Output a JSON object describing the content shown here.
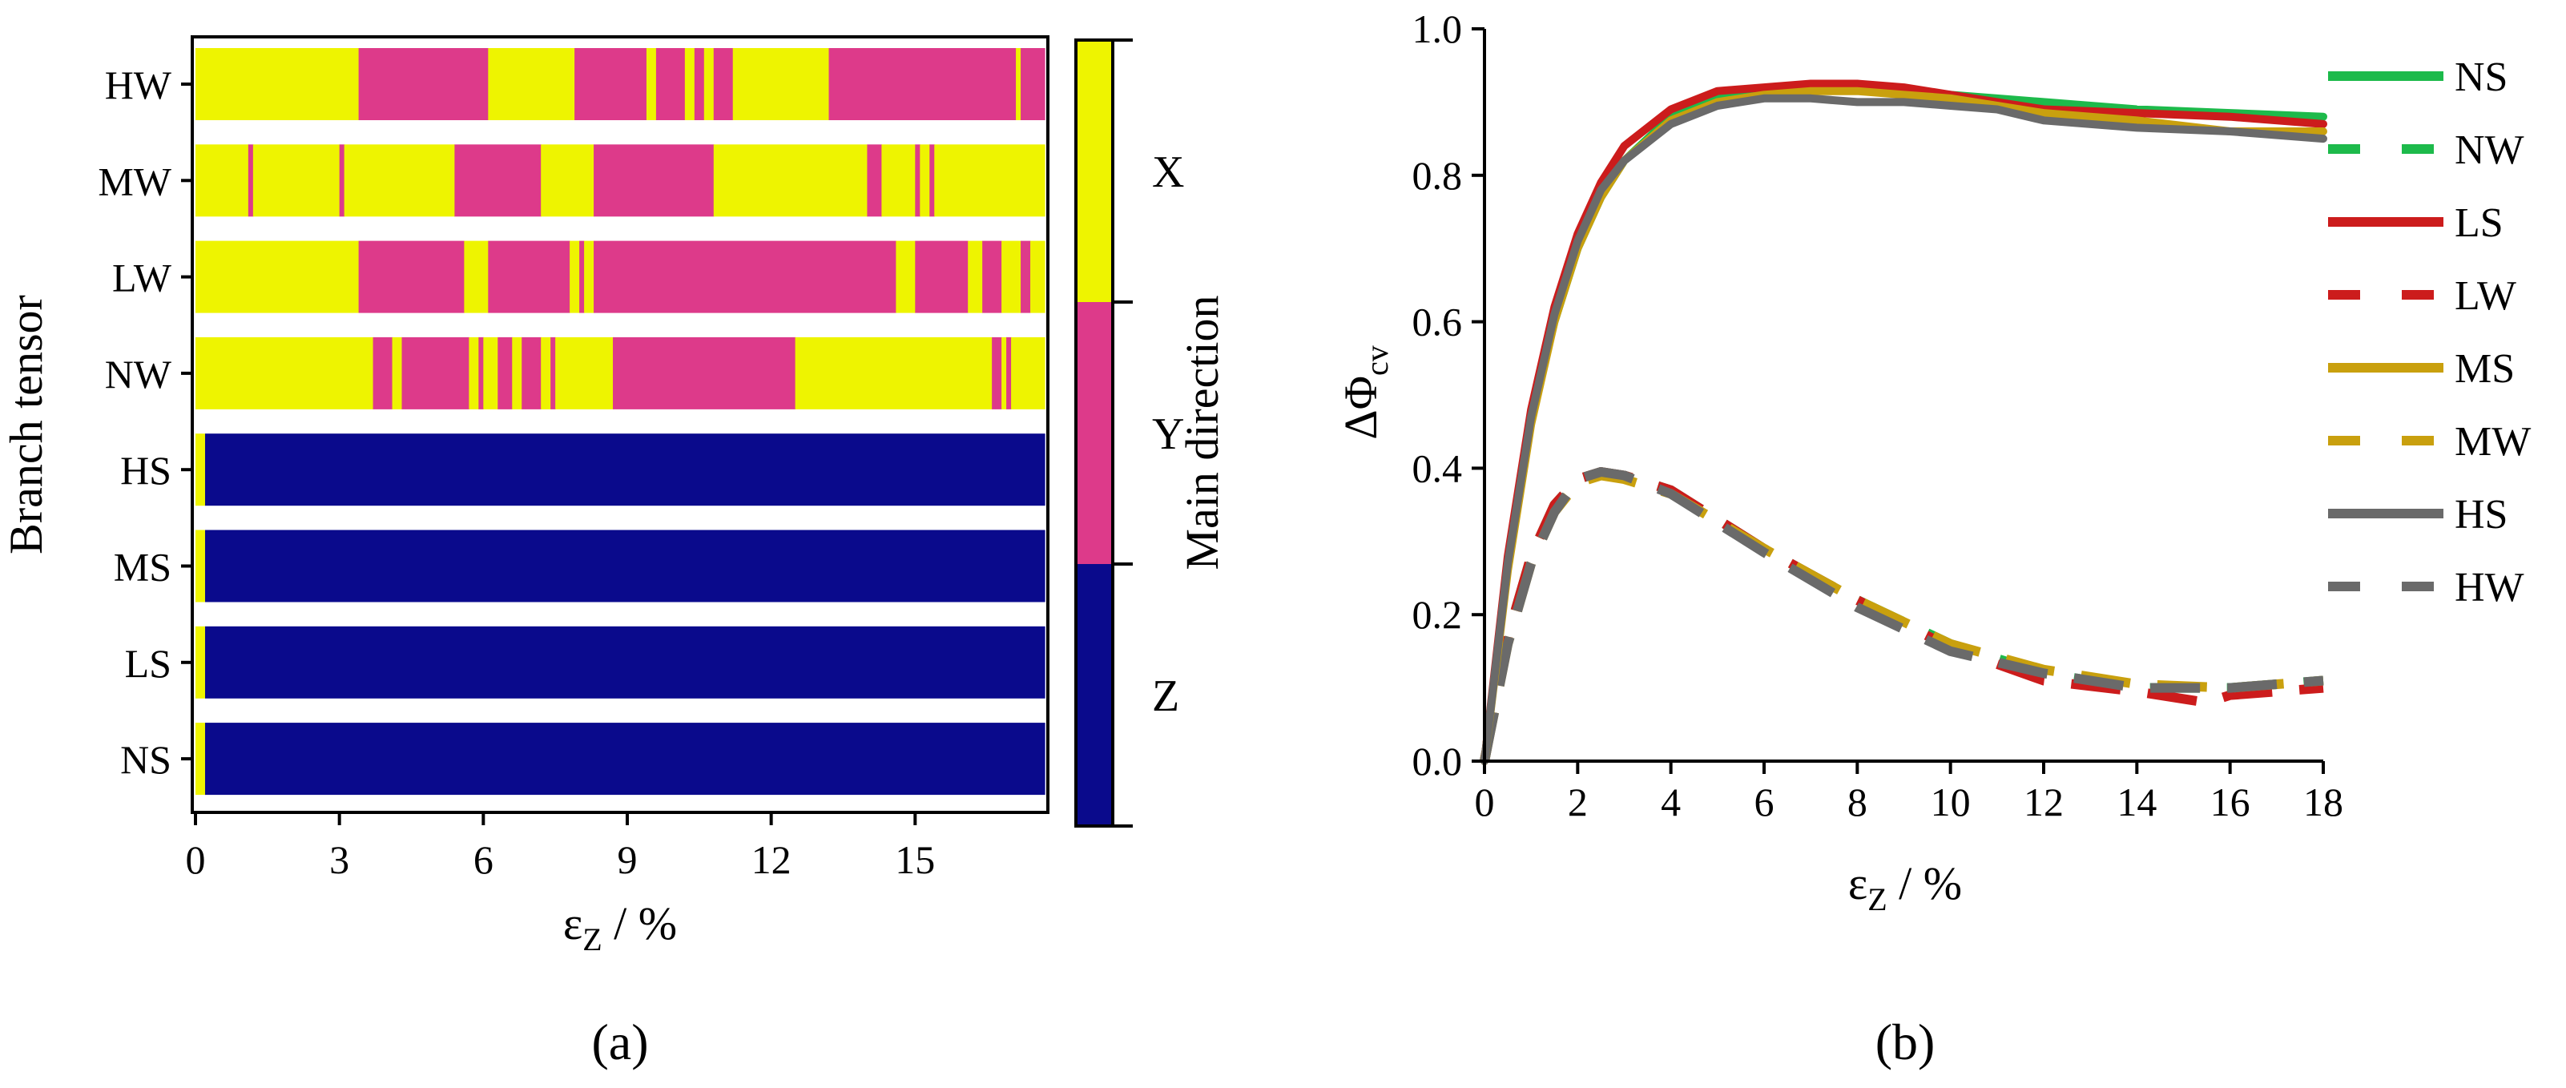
{
  "colors": {
    "X": "#eef400",
    "Y": "#dd3a8a",
    "Z": "#0a0a8c"
  },
  "chart_data": [
    {
      "type": "heatmap",
      "panel_label": "(a)",
      "xlabel": {
        "main": "ε",
        "sub": "Z",
        "rest": " / %"
      },
      "ylabel": "Branch tensor",
      "xlim": [
        0,
        17.7
      ],
      "xticks": [
        "0",
        "3",
        "6",
        "9",
        "12",
        "15"
      ],
      "colorbar": {
        "title": "Main direction",
        "labels": [
          "X",
          "Y",
          "Z"
        ]
      },
      "rows": [
        {
          "label": "HW",
          "segments": [
            [
              0,
              3.4,
              "X"
            ],
            [
              3.4,
              6.1,
              "Y"
            ],
            [
              6.1,
              7.9,
              "X"
            ],
            [
              7.9,
              9.4,
              "Y"
            ],
            [
              9.4,
              9.6,
              "X"
            ],
            [
              9.6,
              10.2,
              "Y"
            ],
            [
              10.2,
              10.4,
              "X"
            ],
            [
              10.4,
              10.6,
              "Y"
            ],
            [
              10.6,
              10.8,
              "X"
            ],
            [
              10.8,
              11.2,
              "Y"
            ],
            [
              11.2,
              13.2,
              "X"
            ],
            [
              13.2,
              17.1,
              "Y"
            ],
            [
              17.1,
              17.2,
              "X"
            ],
            [
              17.2,
              17.4,
              "Y"
            ],
            [
              17.4,
              17.7,
              "Y"
            ]
          ]
        },
        {
          "label": "MW",
          "segments": [
            [
              0,
              1.1,
              "X"
            ],
            [
              1.1,
              1.2,
              "Y"
            ],
            [
              1.2,
              3.0,
              "X"
            ],
            [
              3.0,
              3.1,
              "Y"
            ],
            [
              3.1,
              5.4,
              "X"
            ],
            [
              5.4,
              7.2,
              "Y"
            ],
            [
              7.2,
              8.3,
              "X"
            ],
            [
              8.3,
              10.8,
              "Y"
            ],
            [
              10.8,
              14.0,
              "X"
            ],
            [
              14.0,
              14.3,
              "Y"
            ],
            [
              14.3,
              15.0,
              "X"
            ],
            [
              15.0,
              15.1,
              "Y"
            ],
            [
              15.1,
              15.3,
              "X"
            ],
            [
              15.3,
              15.4,
              "Y"
            ],
            [
              15.4,
              17.7,
              "X"
            ]
          ]
        },
        {
          "label": "LW",
          "segments": [
            [
              0,
              3.4,
              "X"
            ],
            [
              3.4,
              5.6,
              "Y"
            ],
            [
              5.6,
              6.1,
              "X"
            ],
            [
              6.1,
              7.8,
              "Y"
            ],
            [
              7.8,
              8.0,
              "X"
            ],
            [
              8.0,
              8.1,
              "Y"
            ],
            [
              8.1,
              8.3,
              "X"
            ],
            [
              8.3,
              14.6,
              "Y"
            ],
            [
              14.6,
              15.0,
              "X"
            ],
            [
              15.0,
              16.1,
              "Y"
            ],
            [
              16.1,
              16.4,
              "X"
            ],
            [
              16.4,
              16.8,
              "Y"
            ],
            [
              16.8,
              17.2,
              "X"
            ],
            [
              17.2,
              17.4,
              "Y"
            ],
            [
              17.4,
              17.7,
              "X"
            ]
          ]
        },
        {
          "label": "NW",
          "segments": [
            [
              0,
              3.7,
              "X"
            ],
            [
              3.7,
              4.1,
              "Y"
            ],
            [
              4.1,
              4.3,
              "X"
            ],
            [
              4.3,
              5.7,
              "Y"
            ],
            [
              5.7,
              5.9,
              "X"
            ],
            [
              5.9,
              6.0,
              "Y"
            ],
            [
              6.0,
              6.3,
              "X"
            ],
            [
              6.3,
              6.6,
              "Y"
            ],
            [
              6.6,
              6.8,
              "X"
            ],
            [
              6.8,
              7.2,
              "Y"
            ],
            [
              7.2,
              7.4,
              "X"
            ],
            [
              7.4,
              7.5,
              "Y"
            ],
            [
              7.5,
              8.7,
              "X"
            ],
            [
              8.7,
              12.5,
              "Y"
            ],
            [
              12.5,
              16.6,
              "X"
            ],
            [
              16.6,
              16.8,
              "Y"
            ],
            [
              16.8,
              16.9,
              "X"
            ],
            [
              16.9,
              17.0,
              "Y"
            ],
            [
              17.0,
              17.7,
              "X"
            ]
          ]
        },
        {
          "label": "HS",
          "segments": [
            [
              0,
              0.2,
              "X"
            ],
            [
              0.2,
              17.7,
              "Z"
            ]
          ]
        },
        {
          "label": "MS",
          "segments": [
            [
              0,
              0.2,
              "X"
            ],
            [
              0.2,
              17.7,
              "Z"
            ]
          ]
        },
        {
          "label": "LS",
          "segments": [
            [
              0,
              0.2,
              "X"
            ],
            [
              0.2,
              17.7,
              "Z"
            ]
          ]
        },
        {
          "label": "NS",
          "segments": [
            [
              0,
              0.2,
              "X"
            ],
            [
              0.2,
              17.7,
              "Z"
            ]
          ]
        }
      ]
    },
    {
      "type": "line",
      "panel_label": "(b)",
      "xlabel": {
        "main": "ε",
        "sub": "Z",
        "rest": " / %"
      },
      "ylabel": {
        "main": "ΔΦ",
        "sub": "cv"
      },
      "xlim": [
        0,
        18
      ],
      "ylim": [
        0,
        1.0
      ],
      "xticks": [
        "0",
        "2",
        "4",
        "6",
        "8",
        "10",
        "12",
        "14",
        "16",
        "18"
      ],
      "yticks": [
        "0.0",
        "0.2",
        "0.4",
        "0.6",
        "0.8",
        "1.0"
      ],
      "series": [
        {
          "name": "NS",
          "color": "#1dba4b",
          "style": "solid",
          "x": [
            0,
            0.5,
            1,
            1.5,
            2,
            2.5,
            3,
            4,
            5,
            6,
            7,
            8,
            9,
            10,
            11,
            12,
            14,
            16,
            18
          ],
          "y": [
            0,
            0.27,
            0.47,
            0.6,
            0.7,
            0.77,
            0.82,
            0.88,
            0.91,
            0.915,
            0.918,
            0.918,
            0.915,
            0.91,
            0.905,
            0.9,
            0.89,
            0.885,
            0.88
          ]
        },
        {
          "name": "NW",
          "color": "#1dba4b",
          "style": "dashed",
          "x": [
            0,
            0.5,
            1,
            1.5,
            2,
            2.5,
            3,
            4,
            6,
            8,
            10,
            12,
            14,
            16,
            18
          ],
          "y": [
            0,
            0.17,
            0.28,
            0.35,
            0.385,
            0.395,
            0.39,
            0.37,
            0.29,
            0.22,
            0.16,
            0.12,
            0.1,
            0.1,
            0.11
          ]
        },
        {
          "name": "LS",
          "color": "#cc1c1c",
          "style": "solid",
          "x": [
            0,
            0.5,
            1,
            1.5,
            2,
            2.5,
            3,
            4,
            5,
            6,
            7,
            8,
            9,
            10,
            11,
            12,
            14,
            16,
            18
          ],
          "y": [
            0,
            0.28,
            0.48,
            0.62,
            0.72,
            0.79,
            0.84,
            0.89,
            0.915,
            0.92,
            0.925,
            0.925,
            0.92,
            0.91,
            0.9,
            0.89,
            0.885,
            0.88,
            0.87
          ]
        },
        {
          "name": "LW",
          "color": "#cc1c1c",
          "style": "dashed",
          "x": [
            0,
            0.5,
            1,
            1.5,
            2,
            2.5,
            3,
            4,
            6,
            8,
            10,
            12,
            14,
            15.5,
            16,
            18
          ],
          "y": [
            0,
            0.17,
            0.28,
            0.35,
            0.385,
            0.395,
            0.39,
            0.37,
            0.29,
            0.22,
            0.155,
            0.11,
            0.095,
            0.08,
            0.09,
            0.1
          ]
        },
        {
          "name": "MS",
          "color": "#c9a00e",
          "style": "solid",
          "x": [
            0,
            0.5,
            1,
            1.5,
            2,
            2.5,
            3,
            4,
            5,
            6,
            7,
            8,
            9,
            10,
            11,
            12,
            14,
            16,
            18
          ],
          "y": [
            0,
            0.26,
            0.46,
            0.6,
            0.7,
            0.77,
            0.82,
            0.875,
            0.9,
            0.91,
            0.915,
            0.915,
            0.91,
            0.905,
            0.895,
            0.885,
            0.875,
            0.86,
            0.86
          ]
        },
        {
          "name": "MW",
          "color": "#c9a00e",
          "style": "dashed",
          "x": [
            0,
            0.5,
            1,
            1.5,
            2,
            2.5,
            3,
            4,
            6,
            8,
            10,
            12,
            14,
            16,
            18
          ],
          "y": [
            0,
            0.16,
            0.27,
            0.34,
            0.38,
            0.39,
            0.385,
            0.365,
            0.29,
            0.22,
            0.16,
            0.125,
            0.105,
            0.1,
            0.11
          ]
        },
        {
          "name": "HS",
          "color": "#6a6a6a",
          "style": "solid",
          "x": [
            0,
            0.5,
            1,
            1.5,
            2,
            2.5,
            3,
            4,
            5,
            6,
            7,
            8,
            9,
            10,
            11,
            12,
            14,
            16,
            18
          ],
          "y": [
            0,
            0.27,
            0.47,
            0.61,
            0.71,
            0.78,
            0.82,
            0.87,
            0.895,
            0.905,
            0.905,
            0.9,
            0.9,
            0.895,
            0.89,
            0.875,
            0.865,
            0.86,
            0.85
          ]
        },
        {
          "name": "HW",
          "color": "#6a6a6a",
          "style": "dashed",
          "x": [
            0,
            0.5,
            1,
            1.5,
            2,
            2.5,
            3,
            4,
            6,
            8,
            10,
            12,
            14,
            16,
            18
          ],
          "y": [
            0,
            0.16,
            0.27,
            0.34,
            0.385,
            0.395,
            0.39,
            0.365,
            0.285,
            0.21,
            0.15,
            0.12,
            0.1,
            0.1,
            0.11
          ]
        }
      ]
    }
  ]
}
